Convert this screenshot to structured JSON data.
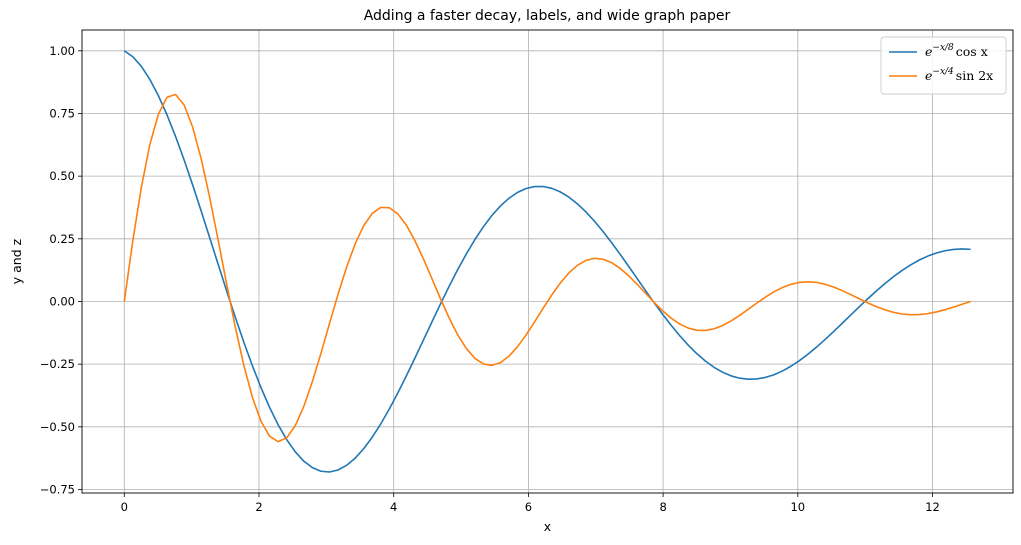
{
  "chart_data": {
    "type": "line",
    "title": "Adding a faster decay, labels, and wide graph paper",
    "xlabel": "x",
    "ylabel": "y and z",
    "xlim": [
      -0.628,
      13.195
    ],
    "ylim": [
      -0.764,
      1.083
    ],
    "xticks": [
      0,
      2,
      4,
      6,
      8,
      10,
      12
    ],
    "xtick_labels": [
      "0",
      "2",
      "4",
      "6",
      "8",
      "10",
      "12"
    ],
    "yticks": [
      -0.75,
      -0.5,
      -0.25,
      0.0,
      0.25,
      0.5,
      0.75,
      1.0
    ],
    "ytick_labels": [
      "−0.75",
      "−0.50",
      "−0.25",
      "0.00",
      "0.25",
      "0.50",
      "0.75",
      "1.00"
    ],
    "grid": true,
    "legend_position": "upper right",
    "x_range": [
      0,
      12.566
    ],
    "num_points": 100,
    "series": [
      {
        "name": "e^{-x/8} cos x",
        "legend": {
          "base": "e",
          "exponent": "−x/8",
          "rest": "cos x"
        },
        "formula": "exp(-x/8)*cos(x)",
        "color": "#1f77b4"
      },
      {
        "name": "e^{-x/4} sin 2x",
        "legend": {
          "base": "e",
          "exponent": "−x/4",
          "rest": "sin 2x"
        },
        "formula": "exp(-x/4)*sin(2*x)",
        "color": "#ff7f0e"
      }
    ]
  }
}
